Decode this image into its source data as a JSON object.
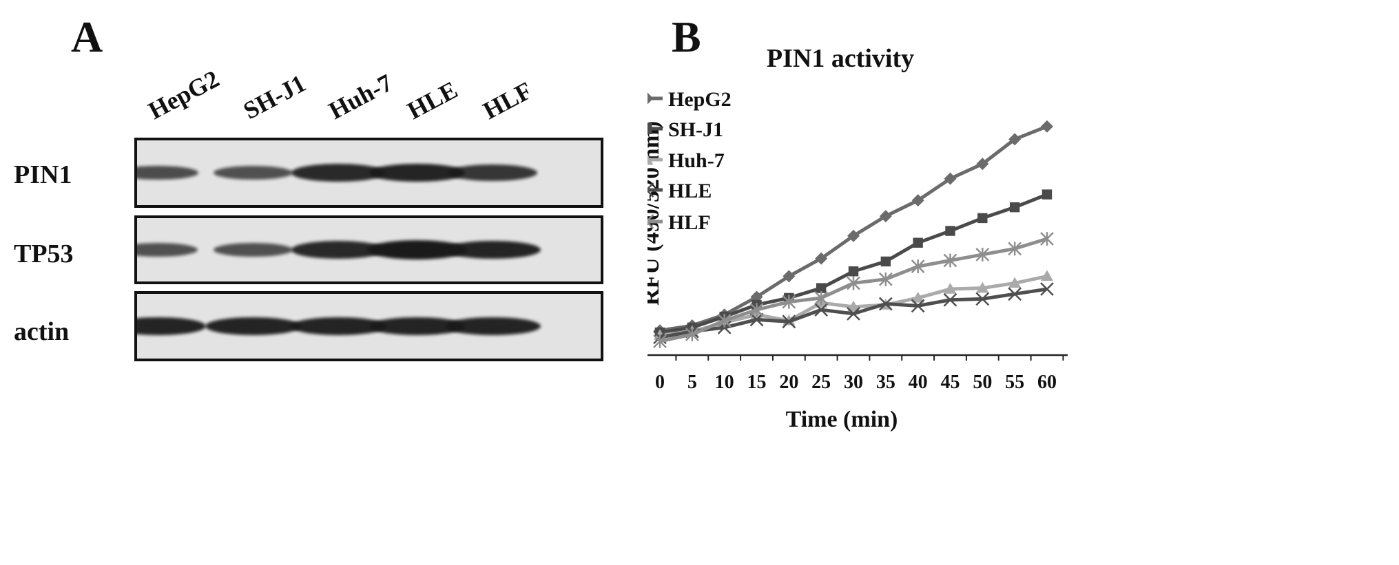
{
  "panel_a": {
    "letter": "A",
    "lanes": [
      "HepG2",
      "SH-J1",
      "Huh-7",
      "HLE",
      "HLF"
    ],
    "rows": [
      {
        "label": "PIN1",
        "intensity": [
          0.55,
          0.5,
          0.85,
          0.9,
          0.75
        ]
      },
      {
        "label": "TP53",
        "intensity": [
          0.5,
          0.5,
          0.85,
          1.0,
          0.9
        ]
      },
      {
        "label": "actin",
        "intensity": [
          0.9,
          0.9,
          0.9,
          0.9,
          0.9
        ]
      }
    ]
  },
  "chart_data": {
    "letter": "B",
    "type": "line",
    "title": "PIN1 activity",
    "xlabel": "Time (min)",
    "ylabel": "RFU (490/520  nm)",
    "x": [
      0,
      5,
      10,
      15,
      20,
      25,
      30,
      35,
      40,
      45,
      50,
      55,
      60
    ],
    "xticks": [
      0,
      5,
      10,
      15,
      20,
      25,
      30,
      35,
      40,
      45,
      50,
      55,
      60
    ],
    "yticks": [
      0,
      200,
      400,
      600,
      800,
      1000,
      1200,
      1400
    ],
    "ylim": [
      0,
      1400
    ],
    "grid": false,
    "legend": "top-left",
    "series": [
      {
        "name": "HepG2",
        "marker": "diamond",
        "color": "#6b6b6b",
        "values": [
          125,
          150,
          205,
          295,
          400,
          490,
          605,
          705,
          785,
          895,
          970,
          1095,
          1160
        ]
      },
      {
        "name": "SH-J1",
        "marker": "square",
        "color": "#4a4a4a",
        "values": [
          115,
          140,
          195,
          255,
          290,
          340,
          425,
          475,
          570,
          630,
          695,
          750,
          815
        ]
      },
      {
        "name": "Huh-7",
        "marker": "triangle",
        "color": "#aaaaaa",
        "values": [
          100,
          120,
          165,
          205,
          175,
          265,
          245,
          255,
          290,
          335,
          340,
          365,
          400
        ]
      },
      {
        "name": "HLE",
        "marker": "x",
        "color": "#4f4f4f",
        "values": [
          90,
          120,
          140,
          180,
          170,
          230,
          210,
          260,
          250,
          280,
          285,
          310,
          335
        ]
      },
      {
        "name": "HLF",
        "marker": "asterisk",
        "color": "#8e8e8e",
        "values": [
          70,
          105,
          175,
          230,
          270,
          290,
          365,
          385,
          450,
          480,
          510,
          540,
          590
        ]
      }
    ]
  }
}
